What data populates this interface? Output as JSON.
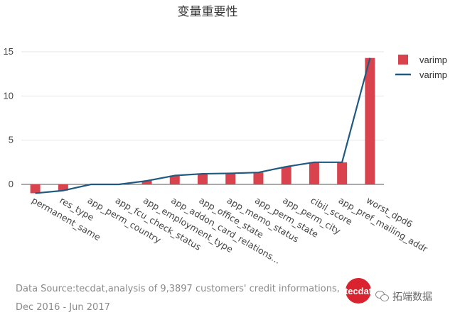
{
  "chart_data": {
    "type": "bar",
    "title": "变量重要性",
    "categories": [
      "permanent_same",
      "res_type",
      "app_perm_country",
      "app_fcu_check_status",
      "app_employment_type",
      "app_addon_card_relations...",
      "app_office_state",
      "app_memo_status",
      "app_perm_state",
      "app_perm_city",
      "cibil_score",
      "app_pref_mailing_addr",
      "worst_dpd6"
    ],
    "series": [
      {
        "name": "varimp",
        "kind": "bar",
        "color": "#d9434e",
        "values": [
          -1.0,
          -0.7,
          0.0,
          0.0,
          0.4,
          1.0,
          1.2,
          1.25,
          1.35,
          2.0,
          2.5,
          2.5,
          14.3
        ]
      },
      {
        "name": "varimp",
        "kind": "line",
        "color": "#1f5a80",
        "values": [
          -1.0,
          -0.7,
          0.0,
          0.0,
          0.4,
          1.0,
          1.2,
          1.25,
          1.35,
          2.0,
          2.5,
          2.5,
          14.3
        ]
      }
    ],
    "yticks": [
      0,
      5,
      10,
      15
    ],
    "ylim": [
      -1.2,
      15.5
    ],
    "grid": true,
    "legend": "top-right"
  },
  "source": {
    "line1": "Data Source:tecdat,analysis of 9,3897 customers' credit informations,",
    "line2": "Dec 2016 - Jun 2017"
  },
  "branding": {
    "logo_text": "tecdat",
    "wechat_text": "拓端数据"
  }
}
